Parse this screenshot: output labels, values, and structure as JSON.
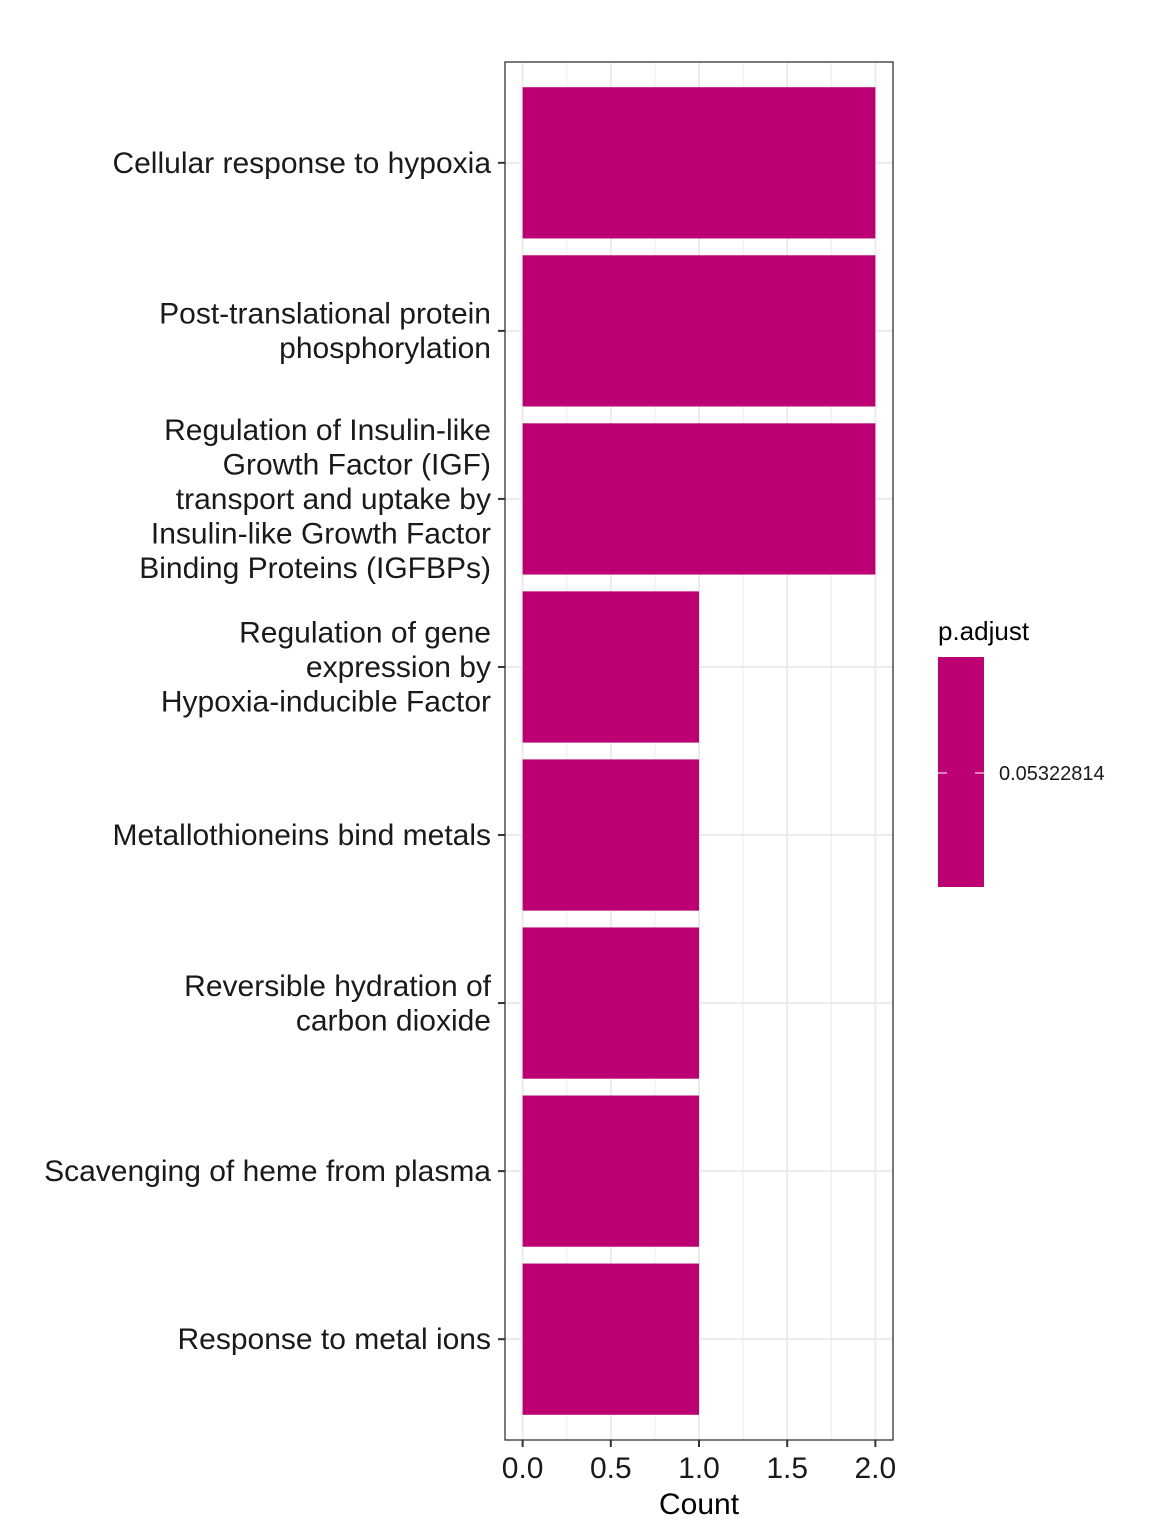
{
  "chart_data": {
    "type": "bar",
    "orientation": "horizontal",
    "categories": [
      "Cellular response to hypoxia",
      "Post-translational protein\nphosphorylation",
      "Regulation of Insulin-like\nGrowth Factor (IGF)\ntransport and uptake by\nInsulin-like Growth Factor\nBinding Proteins (IGFBPs)",
      "Regulation of gene\nexpression by\nHypoxia-inducible Factor",
      "Metallothioneins bind metals",
      "Reversible hydration of\ncarbon dioxide",
      "Scavenging of heme from plasma",
      "Response to metal ions"
    ],
    "values": [
      2,
      2,
      2,
      1,
      1,
      1,
      1,
      1
    ],
    "xlabel": "Count",
    "ylabel": "",
    "xlim": [
      -0.1,
      2.1
    ],
    "xticks": [
      0.0,
      0.5,
      1.0,
      1.5,
      2.0
    ],
    "xtick_labels": [
      "0.0",
      "0.5",
      "1.0",
      "1.5",
      "2.0"
    ],
    "grid": true,
    "bar_color": "#BC0073",
    "legend": {
      "title": "p.adjust",
      "type": "colorbar",
      "label": "0.05322814",
      "color": "#BC0073",
      "placement": "right"
    }
  }
}
